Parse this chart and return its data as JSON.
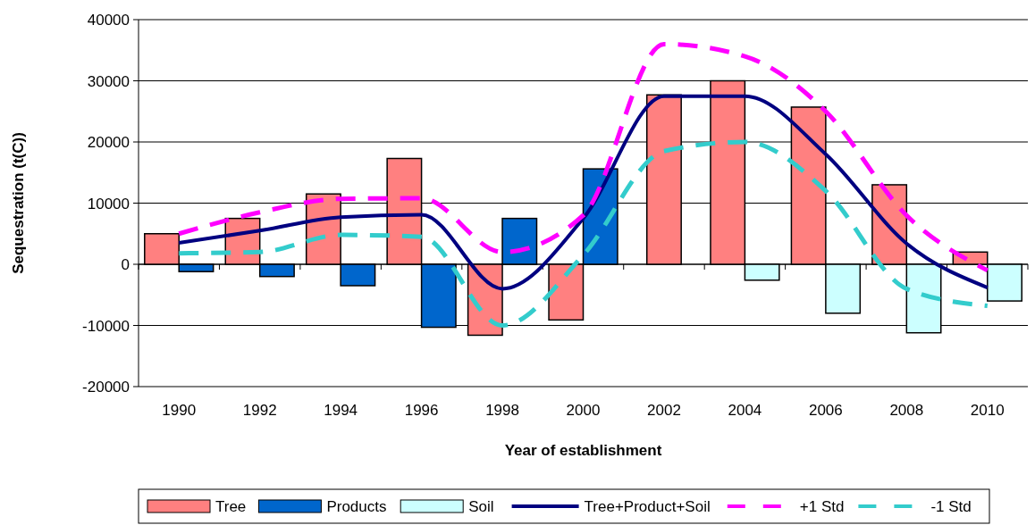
{
  "chart_data": {
    "type": "bar",
    "xlabel": "Year of establishment",
    "ylabel": "Sequestration (t(C))",
    "categories": [
      "1990",
      "1992",
      "1994",
      "1996",
      "1998",
      "2000",
      "2002",
      "2004",
      "2006",
      "2008",
      "2010"
    ],
    "ylim": [
      -20000,
      40000
    ],
    "yticks": [
      -20000,
      -10000,
      0,
      10000,
      20000,
      30000,
      40000
    ],
    "grid": "y",
    "legend": "bottom",
    "series": [
      {
        "name": "Tree",
        "color": "#ff8080",
        "values": [
          5000,
          7500,
          11500,
          17300,
          -11600,
          -9100,
          27700,
          30000,
          25700,
          13000,
          2000
        ]
      },
      {
        "name": "Products",
        "color": "#0066cc",
        "values": [
          -1200,
          -2000,
          -3500,
          -10300,
          7500,
          15600,
          null,
          null,
          null,
          null,
          null
        ]
      },
      {
        "name": "Soil",
        "color": "#ccffff",
        "values": [
          null,
          null,
          null,
          null,
          null,
          null,
          null,
          -2600,
          -8000,
          -11200,
          -6000
        ]
      },
      {
        "name": "Tree+Product+Soil",
        "type": "line",
        "color": "#000080",
        "line_style": "solid",
        "values": [
          3500,
          5500,
          7700,
          8100,
          -4000,
          7500,
          27500,
          27500,
          18000,
          3400,
          -3800
        ]
      },
      {
        "name": "+1 Std",
        "type": "line",
        "color": "#ff00ff",
        "line_style": "dashed",
        "values": [
          5000,
          8500,
          10700,
          10800,
          2000,
          8000,
          36000,
          34000,
          25000,
          8000,
          -1000
        ]
      },
      {
        "name": "-1 Std",
        "type": "line",
        "color": "#33cccc",
        "line_style": "dashed",
        "values": [
          1800,
          2000,
          4800,
          4500,
          -10000,
          1500,
          18500,
          20000,
          12000,
          -4000,
          -6800
        ]
      }
    ]
  }
}
